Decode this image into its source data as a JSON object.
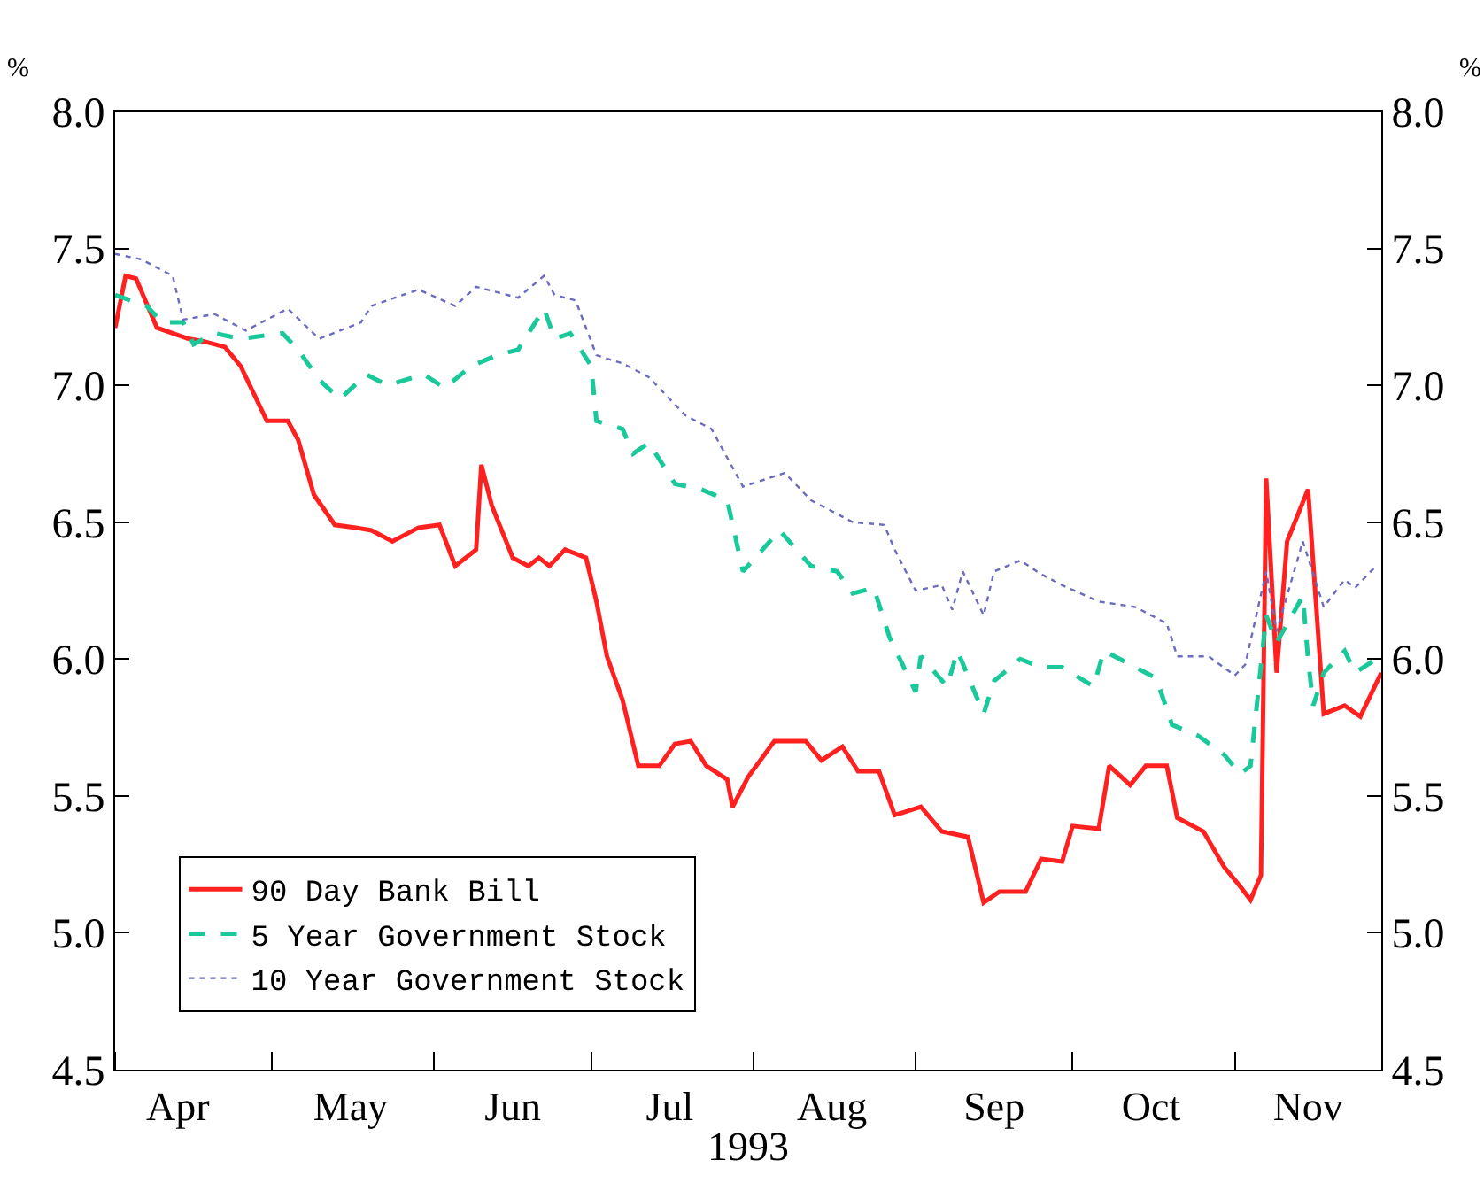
{
  "chart_data": {
    "type": "line",
    "xlabel": "1993",
    "ylabel": "%",
    "y2label": "%",
    "xlim": [
      "1993-04-01",
      "1993-11-29"
    ],
    "xticks": [
      {
        "value": "1993-04-01",
        "label": null
      },
      {
        "value": "1993-04-13",
        "label": "Apr"
      },
      {
        "value": "1993-05-01",
        "label": null
      },
      {
        "value": "1993-05-16",
        "label": "May"
      },
      {
        "value": "1993-06-01",
        "label": null
      },
      {
        "value": "1993-06-16",
        "label": "Jun"
      },
      {
        "value": "1993-07-01",
        "label": null
      },
      {
        "value": "1993-07-16",
        "label": "Jul"
      },
      {
        "value": "1993-08-01",
        "label": null
      },
      {
        "value": "1993-08-16",
        "label": "Aug"
      },
      {
        "value": "1993-09-01",
        "label": null
      },
      {
        "value": "1993-09-16",
        "label": "Sep"
      },
      {
        "value": "1993-10-01",
        "label": null
      },
      {
        "value": "1993-10-16",
        "label": "Oct"
      },
      {
        "value": "1993-11-01",
        "label": null
      },
      {
        "value": "1993-11-15",
        "label": "Nov"
      }
    ],
    "ylim": [
      4.5,
      8.0
    ],
    "yticks": [
      {
        "value": 4.5,
        "label": "4.5"
      },
      {
        "value": 5.0,
        "label": "5.0"
      },
      {
        "value": 5.5,
        "label": "5.5"
      },
      {
        "value": 6.0,
        "label": "6.0"
      },
      {
        "value": 6.5,
        "label": "6.5"
      },
      {
        "value": 7.0,
        "label": "7.0"
      },
      {
        "value": 7.5,
        "label": "7.5"
      },
      {
        "value": 8.0,
        "label": "8.0"
      }
    ],
    "y2lim": [
      4.5,
      8.0
    ],
    "y2ticks": [
      {
        "value": 4.5,
        "label": "4.5"
      },
      {
        "value": 5.0,
        "label": "5.0"
      },
      {
        "value": 5.5,
        "label": "5.5"
      },
      {
        "value": 6.0,
        "label": "6.0"
      },
      {
        "value": 6.5,
        "label": "6.5"
      },
      {
        "value": 7.0,
        "label": "7.0"
      },
      {
        "value": 7.5,
        "label": "7.5"
      },
      {
        "value": 8.0,
        "label": "8.0"
      }
    ],
    "grid": false,
    "legend": "bottom left",
    "marker": "none",
    "series": [
      {
        "name": "90 Day Bank Bill",
        "color": "#ff2020",
        "line_style": "solid",
        "x": [
          "1993-04-01",
          "1993-04-03",
          "1993-04-05",
          "1993-04-09",
          "1993-04-15",
          "1993-04-18",
          "1993-04-22",
          "1993-04-25",
          "1993-04-30",
          "1993-05-04",
          "1993-05-06",
          "1993-05-09",
          "1993-05-13",
          "1993-05-17",
          "1993-05-20",
          "1993-05-24",
          "1993-05-29",
          "1993-06-02",
          "1993-06-05",
          "1993-06-09",
          "1993-06-10",
          "1993-06-12",
          "1993-06-16",
          "1993-06-19",
          "1993-06-21",
          "1993-06-23",
          "1993-06-26",
          "1993-06-30",
          "1993-07-02",
          "1993-07-04",
          "1993-07-07",
          "1993-07-10",
          "1993-07-14",
          "1993-07-17",
          "1993-07-20",
          "1993-07-23",
          "1993-07-27",
          "1993-07-28",
          "1993-07-31",
          "1993-08-05",
          "1993-08-11",
          "1993-08-14",
          "1993-08-18",
          "1993-08-21",
          "1993-08-25",
          "1993-08-28",
          "1993-09-02",
          "1993-09-06",
          "1993-09-11",
          "1993-09-14",
          "1993-09-17",
          "1993-09-22",
          "1993-09-25",
          "1993-09-29",
          "1993-10-01",
          "1993-10-06",
          "1993-10-08",
          "1993-10-12",
          "1993-10-15",
          "1993-10-19",
          "1993-10-21",
          "1993-10-26",
          "1993-10-30",
          "1993-11-02",
          "1993-11-04",
          "1993-11-06",
          "1993-11-07",
          "1993-11-09",
          "1993-11-11",
          "1993-11-15",
          "1993-11-18",
          "1993-11-22",
          "1993-11-25",
          "1993-11-29"
        ],
        "values": [
          7.21,
          7.4,
          7.39,
          7.21,
          7.17,
          7.16,
          7.14,
          7.07,
          6.87,
          6.87,
          6.8,
          6.6,
          6.49,
          6.48,
          6.47,
          6.43,
          6.48,
          6.49,
          6.34,
          6.4,
          6.71,
          6.56,
          6.37,
          6.34,
          6.37,
          6.34,
          6.4,
          6.37,
          6.21,
          6.01,
          5.85,
          5.61,
          5.61,
          5.69,
          5.7,
          5.61,
          5.56,
          5.46,
          5.57,
          5.7,
          5.7,
          5.63,
          5.68,
          5.59,
          5.59,
          5.43,
          5.46,
          5.37,
          5.35,
          5.11,
          5.15,
          5.15,
          5.27,
          5.26,
          5.39,
          5.38,
          5.61,
          5.54,
          5.61,
          5.61,
          5.42,
          5.37,
          5.24,
          5.17,
          5.12,
          5.21,
          6.66,
          5.95,
          6.43,
          6.62,
          5.8,
          5.83,
          5.79,
          5.95
        ]
      },
      {
        "name": "5 Year Government Stock",
        "color": "#19c99a",
        "line_style": "dashed",
        "x": [
          "1993-04-01",
          "1993-04-07",
          "1993-04-10",
          "1993-04-14",
          "1993-04-16",
          "1993-04-20",
          "1993-04-25",
          "1993-05-03",
          "1993-05-06",
          "1993-05-10",
          "1993-05-14",
          "1993-05-19",
          "1993-05-23",
          "1993-05-30",
          "1993-06-03",
          "1993-06-08",
          "1993-06-13",
          "1993-06-17",
          "1993-06-22",
          "1993-06-24",
          "1993-06-27",
          "1993-07-01",
          "1993-07-02",
          "1993-07-07",
          "1993-07-09",
          "1993-07-12",
          "1993-07-17",
          "1993-07-22",
          "1993-07-27",
          "1993-07-30",
          "1993-08-06",
          "1993-08-12",
          "1993-08-17",
          "1993-08-20",
          "1993-08-24",
          "1993-08-27",
          "1993-09-01",
          "1993-09-02",
          "1993-09-07",
          "1993-09-09",
          "1993-09-14",
          "1993-09-16",
          "1993-09-21",
          "1993-09-25",
          "1993-09-29",
          "1993-10-05",
          "1993-10-07",
          "1993-10-13",
          "1993-10-17",
          "1993-10-20",
          "1993-10-25",
          "1993-10-30",
          "1993-11-02",
          "1993-11-04",
          "1993-11-07",
          "1993-11-09",
          "1993-11-14",
          "1993-11-15",
          "1993-11-16",
          "1993-11-18",
          "1993-11-22",
          "1993-11-24",
          "1993-11-28"
        ],
        "values": [
          7.33,
          7.29,
          7.23,
          7.23,
          7.15,
          7.19,
          7.17,
          7.19,
          7.13,
          7.02,
          6.95,
          7.04,
          7.0,
          7.04,
          6.99,
          7.07,
          7.11,
          7.13,
          7.28,
          7.17,
          7.19,
          7.07,
          6.87,
          6.84,
          6.75,
          6.79,
          6.64,
          6.62,
          6.58,
          6.32,
          6.47,
          6.34,
          6.32,
          6.24,
          6.26,
          6.08,
          5.88,
          6.01,
          5.9,
          6.03,
          5.8,
          5.92,
          6.0,
          5.97,
          5.97,
          5.9,
          6.03,
          5.97,
          5.93,
          5.76,
          5.72,
          5.65,
          5.58,
          5.61,
          6.16,
          6.06,
          6.23,
          6.0,
          5.83,
          5.95,
          6.03,
          5.95,
          6.0
        ]
      },
      {
        "name": "10 Year Government Stock",
        "color": "#6b6bc0",
        "line_style": "dotted",
        "x": [
          "1993-04-01",
          "1993-04-06",
          "1993-04-12",
          "1993-04-14",
          "1993-04-20",
          "1993-04-26",
          "1993-04-30",
          "1993-05-04",
          "1993-05-10",
          "1993-05-18",
          "1993-05-20",
          "1993-05-29",
          "1993-06-05",
          "1993-06-09",
          "1993-06-17",
          "1993-06-22",
          "1993-06-24",
          "1993-06-28",
          "1993-07-02",
          "1993-07-07",
          "1993-07-12",
          "1993-07-19",
          "1993-07-24",
          "1993-07-30",
          "1993-08-07",
          "1993-08-12",
          "1993-08-20",
          "1993-08-26",
          "1993-08-28",
          "1993-09-01",
          "1993-09-06",
          "1993-09-08",
          "1993-09-10",
          "1993-09-14",
          "1993-09-16",
          "1993-09-21",
          "1993-09-25",
          "1993-09-29",
          "1993-10-06",
          "1993-10-13",
          "1993-10-19",
          "1993-10-21",
          "1993-10-27",
          "1993-11-01",
          "1993-11-03",
          "1993-11-07",
          "1993-11-09",
          "1993-11-14",
          "1993-11-18",
          "1993-11-22",
          "1993-11-24",
          "1993-11-28"
        ],
        "values": [
          7.48,
          7.46,
          7.4,
          7.24,
          7.26,
          7.2,
          7.24,
          7.28,
          7.17,
          7.23,
          7.29,
          7.35,
          7.29,
          7.36,
          7.32,
          7.4,
          7.33,
          7.31,
          7.11,
          7.08,
          7.03,
          6.89,
          6.84,
          6.63,
          6.68,
          6.58,
          6.5,
          6.49,
          6.4,
          6.25,
          6.27,
          6.18,
          6.32,
          6.16,
          6.32,
          6.36,
          6.31,
          6.27,
          6.21,
          6.19,
          6.13,
          6.01,
          6.01,
          5.94,
          5.98,
          6.32,
          6.1,
          6.43,
          6.19,
          6.29,
          6.26,
          6.34
        ]
      }
    ]
  }
}
